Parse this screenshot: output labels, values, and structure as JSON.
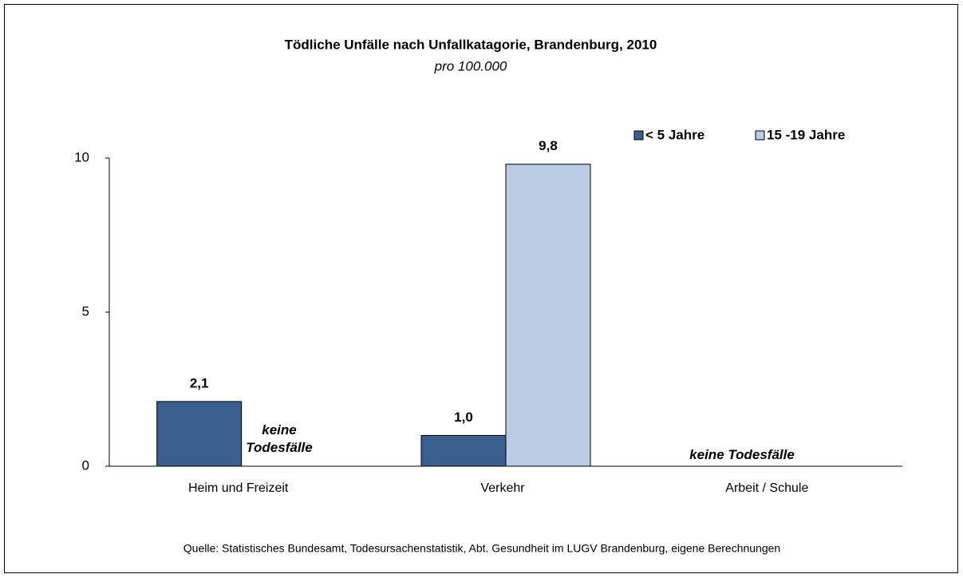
{
  "chart_data": {
    "type": "bar",
    "title": "Tödliche Unfälle nach Unfallkatagorie, Brandenburg, 2010",
    "subtitle": "pro 100.000",
    "categories": [
      "Heim und Freizeit",
      "Verkehr",
      "Arbeit / Schule"
    ],
    "series": [
      {
        "name": "< 5 Jahre",
        "color": "#3a5f8f",
        "values": [
          2.1,
          1.0,
          null
        ],
        "value_labels": [
          "2,1",
          "1,0",
          null
        ]
      },
      {
        "name": "15 -19 Jahre",
        "color": "#b9cce4",
        "values": [
          null,
          9.8,
          null
        ],
        "value_labels": [
          null,
          "9,8",
          null
        ]
      }
    ],
    "annotations": [
      "keine Todesfälle",
      "keine Todesfälle"
    ],
    "ylim": [
      0,
      10
    ],
    "yticks": [
      0,
      5,
      10
    ],
    "grid": false,
    "legend": "top-right",
    "source": "Quelle: Statistisches Bundesamt, Todesursachenstatistik, Abt. Gesundheit im LUGV Brandenburg, eigene Berechnungen"
  }
}
